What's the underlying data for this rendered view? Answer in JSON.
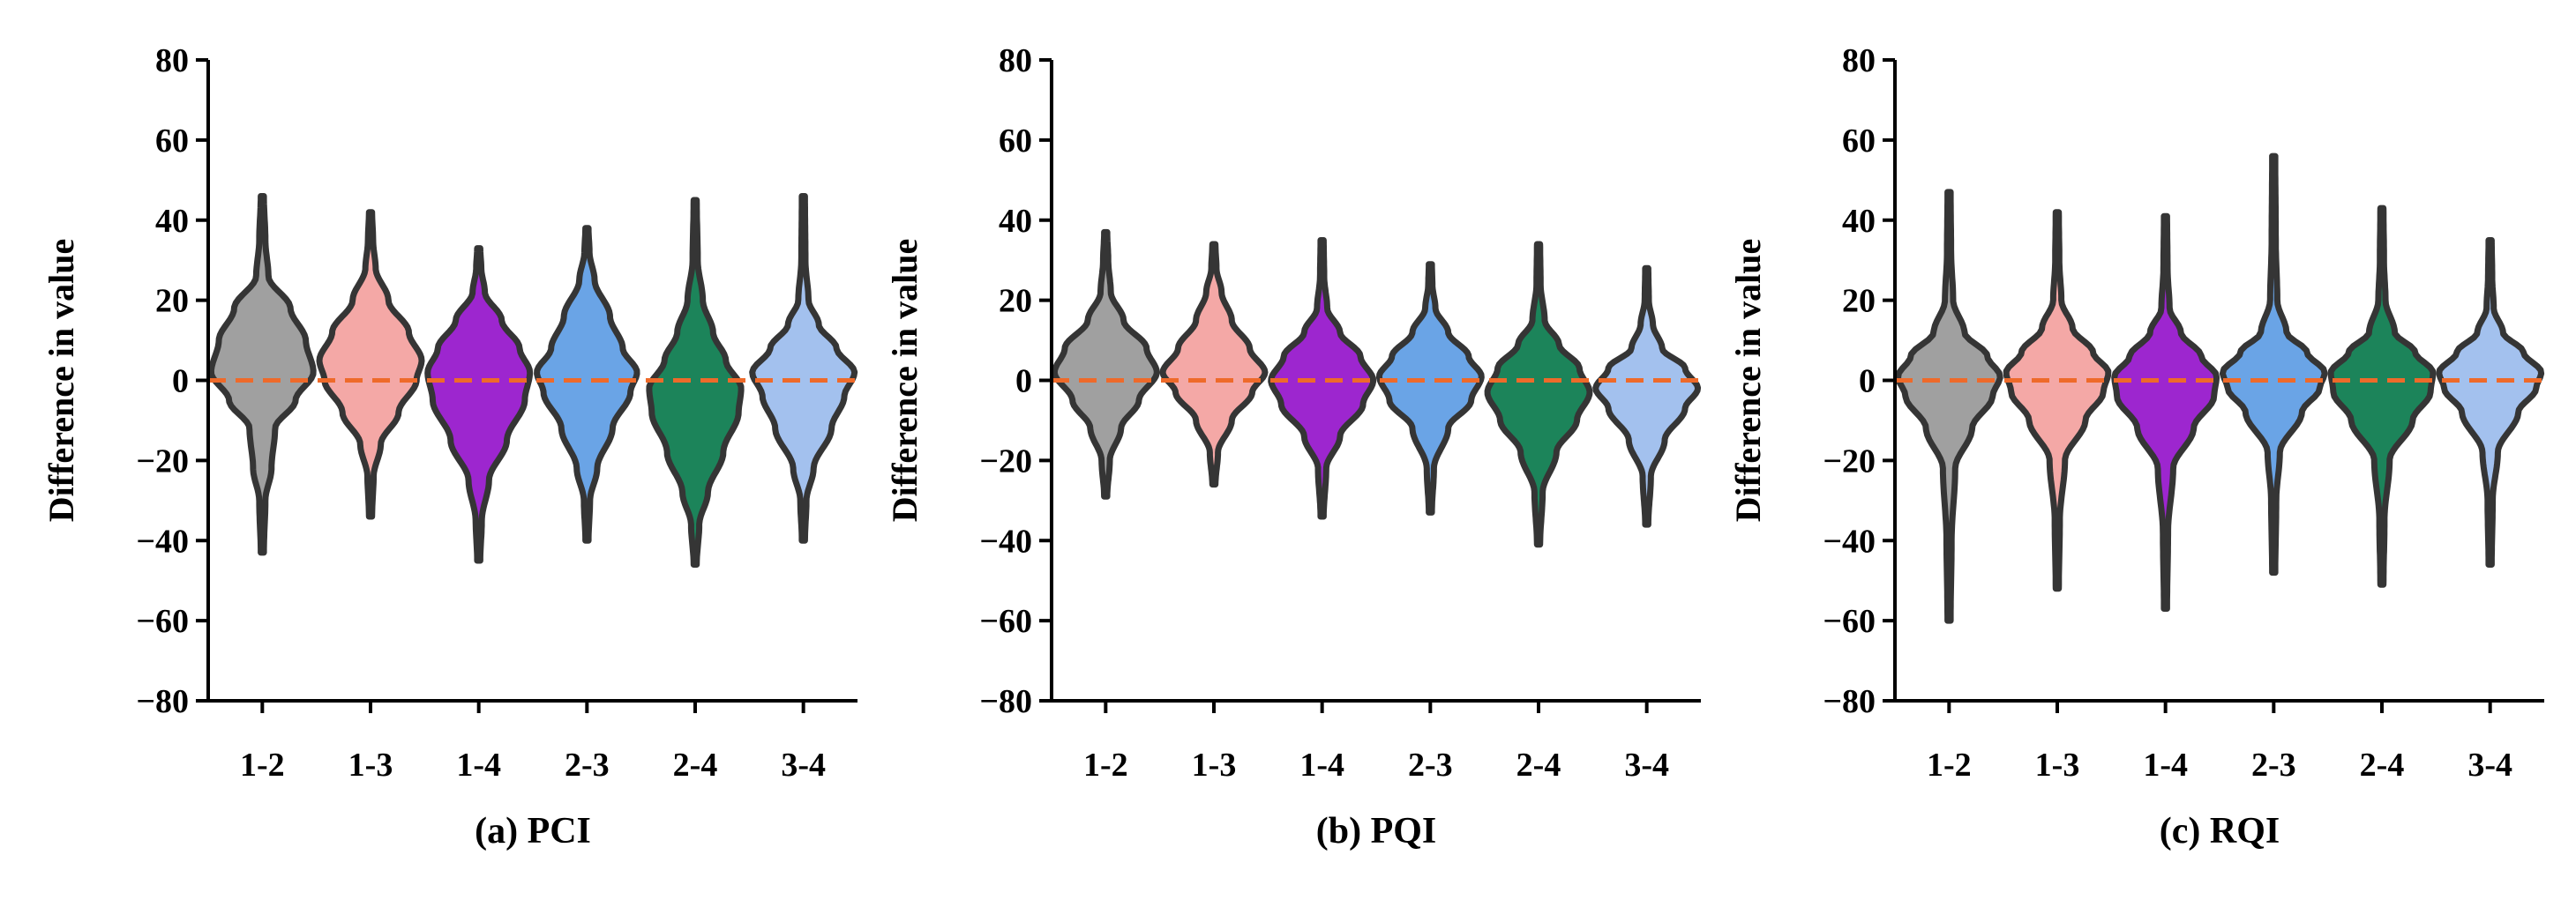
{
  "chart_data": [
    {
      "type": "violin",
      "caption": "(a) PCI",
      "ylabel": "Difference in value",
      "ylim": [
        -80,
        80
      ],
      "yticks": [
        "80",
        "60",
        "40",
        "20",
        "0",
        "−20",
        "−40",
        "−60",
        "−80"
      ],
      "ytick_values": [
        80,
        60,
        40,
        20,
        0,
        -20,
        -40,
        -60,
        -80
      ],
      "categories": [
        "1-2",
        "1-3",
        "1-4",
        "2-3",
        "2-4",
        "3-4"
      ],
      "reference_line": {
        "y": 0,
        "style": "dashed",
        "color": "#ee6a2a"
      },
      "series": [
        {
          "name": "1-2",
          "color": "#a0a0a0",
          "min": -43,
          "max": 46,
          "profile": [
            [
              -43,
              0.03
            ],
            [
              -30,
              0.06
            ],
            [
              -22,
              0.18
            ],
            [
              -12,
              0.25
            ],
            [
              -5,
              0.65
            ],
            [
              2,
              1.0
            ],
            [
              10,
              0.85
            ],
            [
              18,
              0.55
            ],
            [
              26,
              0.12
            ],
            [
              35,
              0.06
            ],
            [
              46,
              0.03
            ]
          ]
        },
        {
          "name": "1-3",
          "color": "#f4a8a6",
          "min": -34,
          "max": 42,
          "profile": [
            [
              -34,
              0.03
            ],
            [
              -24,
              0.06
            ],
            [
              -16,
              0.2
            ],
            [
              -8,
              0.55
            ],
            [
              0,
              0.9
            ],
            [
              5,
              1.0
            ],
            [
              12,
              0.75
            ],
            [
              20,
              0.35
            ],
            [
              28,
              0.1
            ],
            [
              35,
              0.05
            ],
            [
              42,
              0.03
            ]
          ]
        },
        {
          "name": "1-4",
          "color": "#9d26cf",
          "min": -45,
          "max": 33,
          "profile": [
            [
              -45,
              0.03
            ],
            [
              -35,
              0.06
            ],
            [
              -25,
              0.2
            ],
            [
              -15,
              0.55
            ],
            [
              -5,
              0.9
            ],
            [
              2,
              1.0
            ],
            [
              8,
              0.8
            ],
            [
              15,
              0.45
            ],
            [
              22,
              0.12
            ],
            [
              28,
              0.05
            ],
            [
              33,
              0.03
            ]
          ]
        },
        {
          "name": "2-3",
          "color": "#6aa4e6",
          "min": -40,
          "max": 38,
          "profile": [
            [
              -40,
              0.03
            ],
            [
              -30,
              0.06
            ],
            [
              -22,
              0.2
            ],
            [
              -12,
              0.5
            ],
            [
              -3,
              0.85
            ],
            [
              2,
              0.98
            ],
            [
              8,
              0.7
            ],
            [
              16,
              0.45
            ],
            [
              25,
              0.15
            ],
            [
              32,
              0.05
            ],
            [
              38,
              0.03
            ]
          ]
        },
        {
          "name": "2-4",
          "color": "#1c845a",
          "min": -46,
          "max": 45,
          "profile": [
            [
              -46,
              0.03
            ],
            [
              -36,
              0.08
            ],
            [
              -28,
              0.25
            ],
            [
              -18,
              0.55
            ],
            [
              -8,
              0.85
            ],
            [
              -2,
              0.9
            ],
            [
              5,
              0.6
            ],
            [
              12,
              0.35
            ],
            [
              20,
              0.15
            ],
            [
              30,
              0.05
            ],
            [
              45,
              0.03
            ]
          ]
        },
        {
          "name": "3-4",
          "color": "#a3c1ee",
          "min": -40,
          "max": 46,
          "profile": [
            [
              -40,
              0.03
            ],
            [
              -30,
              0.06
            ],
            [
              -22,
              0.2
            ],
            [
              -12,
              0.55
            ],
            [
              -4,
              0.8
            ],
            [
              2,
              1.0
            ],
            [
              8,
              0.65
            ],
            [
              14,
              0.3
            ],
            [
              20,
              0.1
            ],
            [
              30,
              0.04
            ],
            [
              46,
              0.03
            ]
          ]
        }
      ]
    },
    {
      "type": "violin",
      "caption": "(b) PQI",
      "ylabel": "Difference in value",
      "ylim": [
        -80,
        80
      ],
      "yticks": [
        "80",
        "60",
        "40",
        "20",
        "0",
        "−20",
        "−40",
        "−60",
        "−80"
      ],
      "ytick_values": [
        80,
        60,
        40,
        20,
        0,
        -20,
        -40,
        -60,
        -80
      ],
      "categories": [
        "1-2",
        "1-3",
        "1-4",
        "2-3",
        "2-4",
        "3-4"
      ],
      "reference_line": {
        "y": 0,
        "style": "dashed",
        "color": "#ee6a2a"
      },
      "series": [
        {
          "name": "1-2",
          "color": "#a0a0a0",
          "min": -29,
          "max": 37,
          "profile": [
            [
              -29,
              0.03
            ],
            [
              -20,
              0.08
            ],
            [
              -12,
              0.3
            ],
            [
              -5,
              0.65
            ],
            [
              2,
              1.0
            ],
            [
              8,
              0.8
            ],
            [
              15,
              0.35
            ],
            [
              22,
              0.1
            ],
            [
              30,
              0.05
            ],
            [
              37,
              0.03
            ]
          ]
        },
        {
          "name": "1-3",
          "color": "#f4a8a6",
          "min": -26,
          "max": 34,
          "profile": [
            [
              -26,
              0.03
            ],
            [
              -18,
              0.08
            ],
            [
              -10,
              0.35
            ],
            [
              -3,
              0.75
            ],
            [
              2,
              1.0
            ],
            [
              8,
              0.7
            ],
            [
              15,
              0.35
            ],
            [
              22,
              0.15
            ],
            [
              28,
              0.05
            ],
            [
              34,
              0.03
            ]
          ]
        },
        {
          "name": "1-4",
          "color": "#9d26cf",
          "min": -34,
          "max": 35,
          "profile": [
            [
              -34,
              0.03
            ],
            [
              -22,
              0.08
            ],
            [
              -14,
              0.35
            ],
            [
              -6,
              0.8
            ],
            [
              0,
              1.0
            ],
            [
              6,
              0.75
            ],
            [
              12,
              0.35
            ],
            [
              18,
              0.1
            ],
            [
              26,
              0.04
            ],
            [
              35,
              0.03
            ]
          ]
        },
        {
          "name": "2-3",
          "color": "#6aa4e6",
          "min": -33,
          "max": 29,
          "profile": [
            [
              -33,
              0.03
            ],
            [
              -22,
              0.07
            ],
            [
              -12,
              0.35
            ],
            [
              -5,
              0.8
            ],
            [
              1,
              1.0
            ],
            [
              6,
              0.75
            ],
            [
              12,
              0.35
            ],
            [
              18,
              0.1
            ],
            [
              24,
              0.04
            ],
            [
              29,
              0.03
            ]
          ]
        },
        {
          "name": "2-4",
          "color": "#1c845a",
          "min": -41,
          "max": 34,
          "profile": [
            [
              -41,
              0.03
            ],
            [
              -28,
              0.08
            ],
            [
              -18,
              0.35
            ],
            [
              -10,
              0.75
            ],
            [
              -3,
              1.0
            ],
            [
              3,
              0.8
            ],
            [
              9,
              0.4
            ],
            [
              15,
              0.12
            ],
            [
              24,
              0.04
            ],
            [
              34,
              0.03
            ]
          ]
        },
        {
          "name": "3-4",
          "color": "#a3c1ee",
          "min": -36,
          "max": 28,
          "profile": [
            [
              -36,
              0.03
            ],
            [
              -24,
              0.08
            ],
            [
              -15,
              0.35
            ],
            [
              -7,
              0.75
            ],
            [
              -2,
              1.0
            ],
            [
              3,
              0.75
            ],
            [
              8,
              0.3
            ],
            [
              14,
              0.12
            ],
            [
              20,
              0.04
            ],
            [
              28,
              0.03
            ]
          ]
        }
      ]
    },
    {
      "type": "violin",
      "caption": "(c) RQI",
      "ylabel": "Difference in value",
      "ylim": [
        -80,
        80
      ],
      "yticks": [
        "80",
        "60",
        "40",
        "20",
        "0",
        "−20",
        "−40",
        "−60",
        "−80"
      ],
      "ytick_values": [
        80,
        60,
        40,
        20,
        0,
        -20,
        -40,
        -60,
        -80
      ],
      "categories": [
        "1-2",
        "1-3",
        "1-4",
        "2-3",
        "2-4",
        "3-4"
      ],
      "reference_line": {
        "y": 0,
        "style": "dashed",
        "color": "#ee6a2a"
      },
      "series": [
        {
          "name": "1-2",
          "color": "#a0a0a0",
          "min": -60,
          "max": 47,
          "profile": [
            [
              -60,
              0.03
            ],
            [
              -40,
              0.05
            ],
            [
              -22,
              0.12
            ],
            [
              -12,
              0.45
            ],
            [
              -4,
              0.85
            ],
            [
              1,
              1.0
            ],
            [
              6,
              0.75
            ],
            [
              12,
              0.3
            ],
            [
              20,
              0.08
            ],
            [
              32,
              0.04
            ],
            [
              47,
              0.03
            ]
          ]
        },
        {
          "name": "1-3",
          "color": "#f4a8a6",
          "min": -52,
          "max": 42,
          "profile": [
            [
              -52,
              0.03
            ],
            [
              -35,
              0.05
            ],
            [
              -20,
              0.15
            ],
            [
              -10,
              0.55
            ],
            [
              -3,
              0.9
            ],
            [
              2,
              1.0
            ],
            [
              7,
              0.7
            ],
            [
              13,
              0.3
            ],
            [
              20,
              0.08
            ],
            [
              30,
              0.04
            ],
            [
              42,
              0.03
            ]
          ]
        },
        {
          "name": "1-4",
          "color": "#9d26cf",
          "min": -57,
          "max": 41,
          "profile": [
            [
              -57,
              0.03
            ],
            [
              -38,
              0.05
            ],
            [
              -22,
              0.15
            ],
            [
              -12,
              0.55
            ],
            [
              -4,
              0.95
            ],
            [
              1,
              1.0
            ],
            [
              6,
              0.7
            ],
            [
              12,
              0.3
            ],
            [
              18,
              0.08
            ],
            [
              28,
              0.04
            ],
            [
              41,
              0.03
            ]
          ]
        },
        {
          "name": "2-3",
          "color": "#6aa4e6",
          "min": -48,
          "max": 56,
          "profile": [
            [
              -48,
              0.03
            ],
            [
              -30,
              0.05
            ],
            [
              -18,
              0.12
            ],
            [
              -8,
              0.55
            ],
            [
              -2,
              0.9
            ],
            [
              2,
              1.0
            ],
            [
              7,
              0.65
            ],
            [
              12,
              0.25
            ],
            [
              20,
              0.07
            ],
            [
              35,
              0.04
            ],
            [
              56,
              0.03
            ]
          ]
        },
        {
          "name": "2-4",
          "color": "#1c845a",
          "min": -51,
          "max": 43,
          "profile": [
            [
              -51,
              0.03
            ],
            [
              -35,
              0.05
            ],
            [
              -20,
              0.15
            ],
            [
              -10,
              0.6
            ],
            [
              -3,
              0.95
            ],
            [
              2,
              1.0
            ],
            [
              7,
              0.65
            ],
            [
              12,
              0.25
            ],
            [
              20,
              0.07
            ],
            [
              30,
              0.04
            ],
            [
              43,
              0.03
            ]
          ]
        },
        {
          "name": "3-4",
          "color": "#a3c1ee",
          "min": -46,
          "max": 35,
          "profile": [
            [
              -46,
              0.03
            ],
            [
              -30,
              0.05
            ],
            [
              -18,
              0.15
            ],
            [
              -8,
              0.55
            ],
            [
              -2,
              0.9
            ],
            [
              2,
              1.0
            ],
            [
              7,
              0.65
            ],
            [
              12,
              0.25
            ],
            [
              18,
              0.07
            ],
            [
              26,
              0.04
            ],
            [
              35,
              0.03
            ]
          ]
        }
      ]
    }
  ]
}
